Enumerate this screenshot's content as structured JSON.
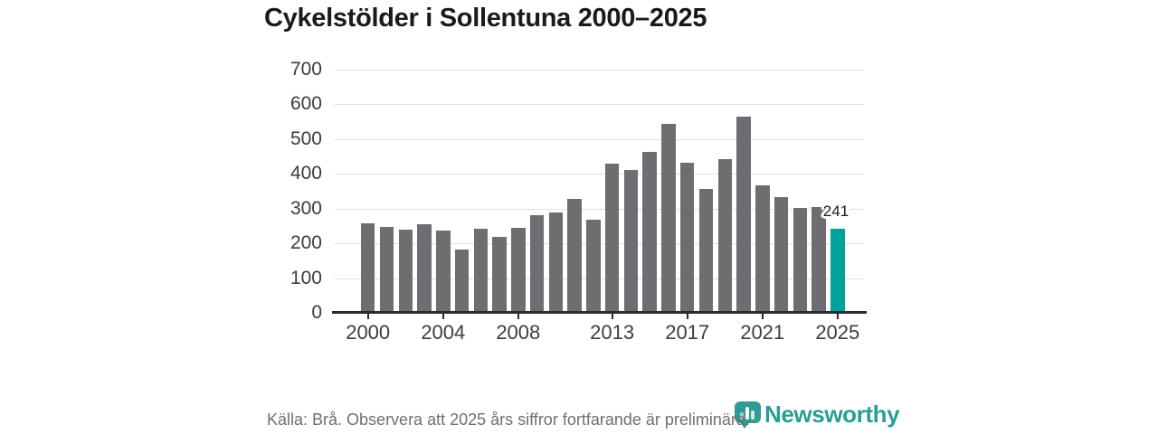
{
  "title": "Cykelstölder i Sollentuna 2000–2025",
  "chart_data": {
    "type": "bar",
    "title": "Cykelstölder i Sollentuna 2000–2025",
    "x": [
      2000,
      2001,
      2002,
      2003,
      2004,
      2005,
      2006,
      2007,
      2008,
      2009,
      2010,
      2011,
      2012,
      2013,
      2014,
      2015,
      2016,
      2017,
      2018,
      2019,
      2020,
      2021,
      2022,
      2023,
      2024,
      2025
    ],
    "values": [
      257,
      247,
      240,
      255,
      237,
      183,
      242,
      219,
      244,
      280,
      289,
      329,
      268,
      430,
      412,
      462,
      545,
      432,
      357,
      443,
      565,
      367,
      332,
      302,
      304,
      241
    ],
    "xlabel": "",
    "ylabel": "",
    "ylim": [
      0,
      700
    ],
    "y_ticks": [
      0,
      100,
      200,
      300,
      400,
      500,
      600,
      700
    ],
    "x_tick_years": [
      2000,
      2004,
      2008,
      2013,
      2017,
      2021,
      2025
    ],
    "grid": "horizontal",
    "legend": "none",
    "highlight_year": 2025,
    "annotation": {
      "year": 2025,
      "text": "241"
    },
    "colors": {
      "bar": "#6e6d72",
      "highlight": "#00a29b",
      "grid": "#e0e0e0",
      "axis": "#2b2b2b",
      "axis_label": "#3c3c44",
      "annotation": "#1a1a1a",
      "title": "#1a1a1a"
    }
  },
  "footer": {
    "source_note": "Källa: Brå. Observera att 2025 års siffror fortfarande är preliminära.",
    "color": "#6e6e78"
  },
  "logo": {
    "text": "Newsworthy",
    "color": "#2a9e96",
    "icon_color": "#2f9c93",
    "icon": "newsworthy-bubble-chart-icon"
  }
}
